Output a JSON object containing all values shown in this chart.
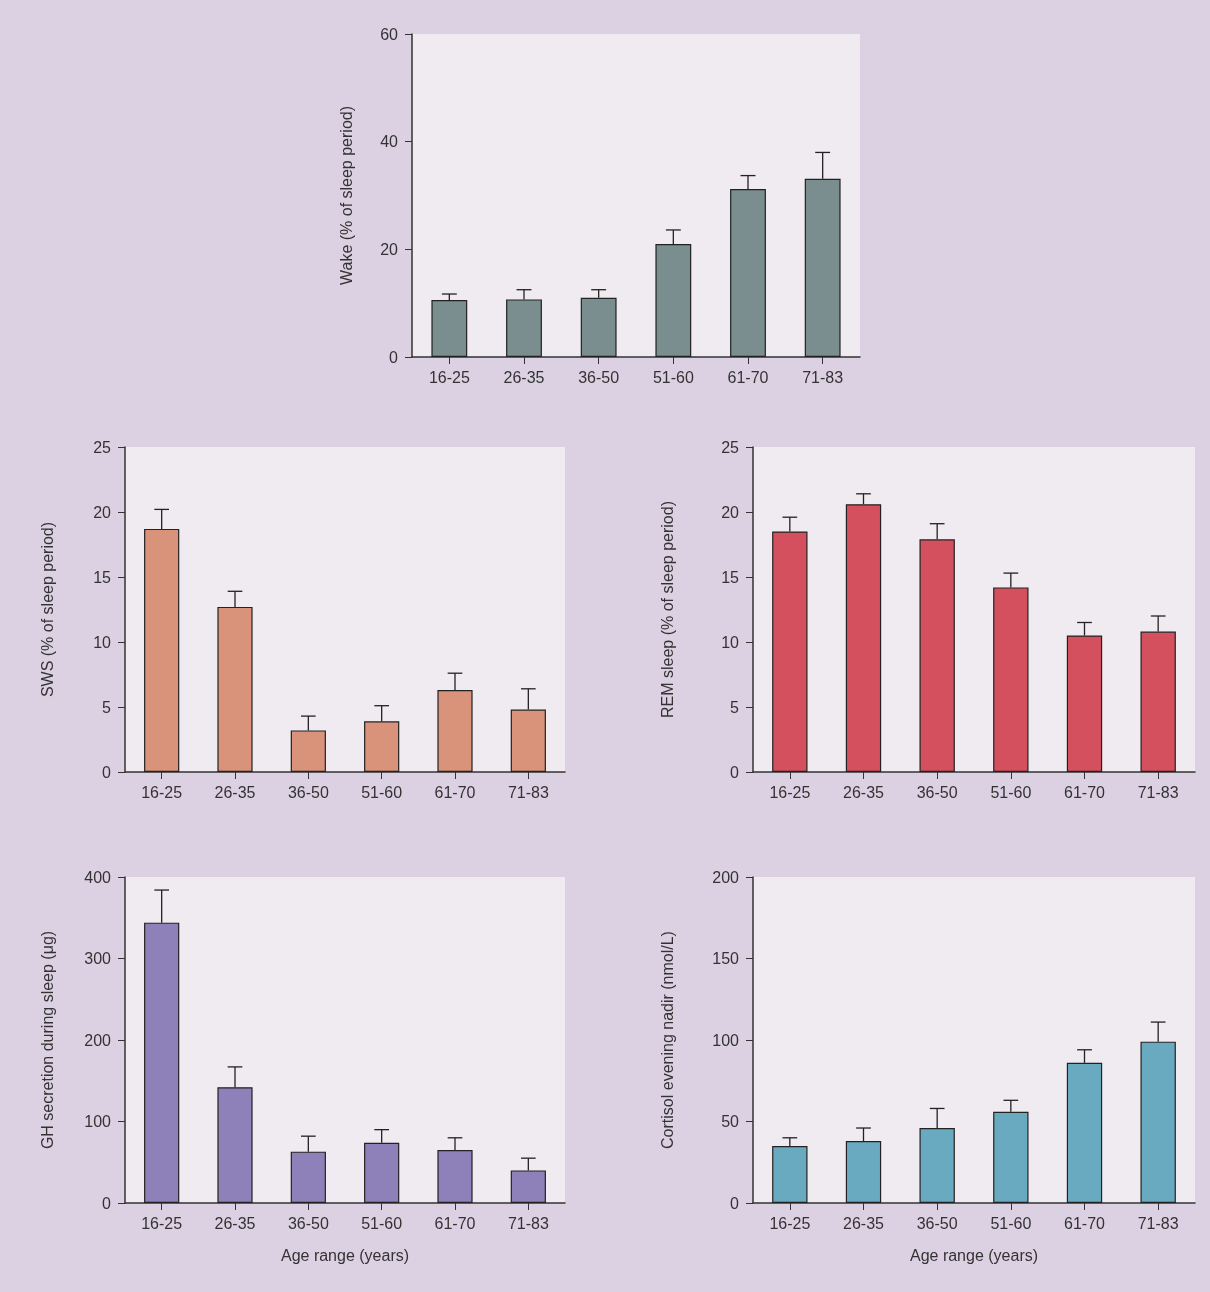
{
  "chart_data": [
    {
      "type": "bar",
      "ylabel": "Wake (% of sleep period)",
      "categories": [
        "16-25",
        "26-35",
        "36-50",
        "51-60",
        "61-70",
        "71-83"
      ],
      "values": [
        10.6,
        10.7,
        11.0,
        21.0,
        31.2,
        33.1
      ],
      "errors": [
        [
          10.6,
          11.7
        ],
        [
          10.7,
          12.5
        ],
        [
          11.0,
          12.5
        ],
        [
          21.0,
          23.6
        ],
        [
          31.2,
          33.7
        ],
        [
          33.1,
          38.0
        ]
      ],
      "color": "#7a8e8f",
      "ylim": [
        0,
        60
      ],
      "yticks": [
        0,
        20,
        40,
        60
      ]
    },
    {
      "type": "bar",
      "ylabel": "SWS (% of sleep period)",
      "categories": [
        "16-25",
        "26-35",
        "36-50",
        "51-60",
        "61-70",
        "71-83"
      ],
      "values": [
        18.7,
        12.7,
        3.2,
        3.9,
        6.3,
        4.8
      ],
      "errors": [
        [
          18.7,
          20.2
        ],
        [
          12.7,
          13.9
        ],
        [
          3.2,
          4.3
        ],
        [
          3.9,
          5.1
        ],
        [
          6.3,
          7.6
        ],
        [
          4.8,
          6.4
        ]
      ],
      "color": "#d9937a",
      "ylim": [
        0,
        25
      ],
      "yticks": [
        0,
        5,
        10,
        15,
        20,
        25
      ]
    },
    {
      "type": "bar",
      "ylabel": "REM sleep (% of sleep period)",
      "categories": [
        "16-25",
        "26-35",
        "36-50",
        "51-60",
        "61-70",
        "71-83"
      ],
      "values": [
        18.5,
        20.6,
        17.9,
        14.2,
        10.5,
        10.8
      ],
      "errors": [
        [
          18.5,
          19.6
        ],
        [
          20.6,
          21.4
        ],
        [
          17.9,
          19.1
        ],
        [
          14.2,
          15.3
        ],
        [
          10.5,
          11.5
        ],
        [
          10.8,
          12.0
        ]
      ],
      "color": "#d4505e",
      "ylim": [
        0,
        25
      ],
      "yticks": [
        0,
        5,
        10,
        15,
        20,
        25
      ]
    },
    {
      "type": "bar",
      "ylabel": "GH secretion during sleep (μg)",
      "xlabel": "Age range (years)",
      "categories": [
        "16-25",
        "26-35",
        "36-50",
        "51-60",
        "61-70",
        "71-83"
      ],
      "values": [
        344,
        142,
        63,
        74,
        65,
        40
      ],
      "errors": [
        [
          344,
          384
        ],
        [
          142,
          167
        ],
        [
          63,
          82
        ],
        [
          74,
          90
        ],
        [
          65,
          80
        ],
        [
          40,
          55
        ]
      ],
      "color": "#8e80b8",
      "ylim": [
        0,
        400
      ],
      "yticks": [
        0,
        100,
        200,
        300,
        400
      ]
    },
    {
      "type": "bar",
      "ylabel": "Cortisol evening nadir (nmol/L)",
      "xlabel": "Age range (years)",
      "categories": [
        "16-25",
        "26-35",
        "36-50",
        "51-60",
        "61-70",
        "71-83"
      ],
      "values": [
        35,
        38,
        46,
        56,
        86,
        99
      ],
      "errors": [
        [
          35,
          40
        ],
        [
          38,
          46
        ],
        [
          46,
          58
        ],
        [
          56,
          63
        ],
        [
          86,
          94
        ],
        [
          99,
          111
        ]
      ],
      "color": "#6aaac0",
      "ylim": [
        0,
        200
      ],
      "yticks": [
        0,
        50,
        100,
        150,
        200
      ]
    }
  ]
}
